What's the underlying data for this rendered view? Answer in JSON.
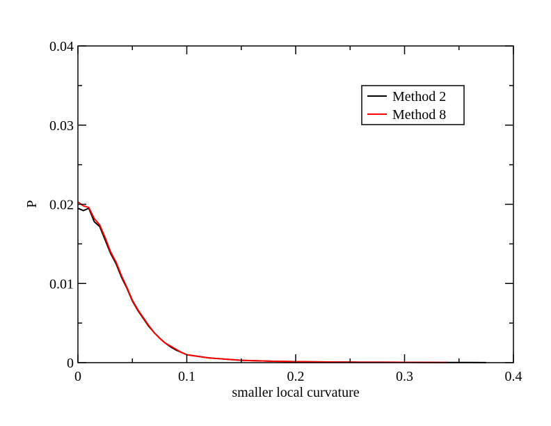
{
  "chart_data": {
    "type": "line",
    "title": "",
    "xlabel": "smaller local curvature",
    "ylabel": "P",
    "xlim": [
      0,
      0.4
    ],
    "ylim": [
      0,
      0.04
    ],
    "xticks": [
      0,
      0.1,
      0.2,
      0.3,
      0.4
    ],
    "xtick_labels": [
      "0",
      "0.1",
      "0.2",
      "0.3",
      "0.4"
    ],
    "yticks": [
      0,
      0.01,
      0.02,
      0.03,
      0.04
    ],
    "ytick_labels": [
      "0",
      "0.01",
      "0.02",
      "0.03",
      "0.04"
    ],
    "grid": false,
    "legend_position": "top-right",
    "series": [
      {
        "name": "Method 2",
        "color": "#000000",
        "x": [
          0,
          0.005,
          0.01,
          0.015,
          0.02,
          0.025,
          0.03,
          0.035,
          0.04,
          0.045,
          0.05,
          0.055,
          0.06,
          0.065,
          0.07,
          0.075,
          0.08,
          0.085,
          0.09,
          0.095,
          0.1,
          0.11,
          0.12,
          0.13,
          0.14,
          0.15,
          0.16,
          0.18,
          0.2,
          0.22,
          0.24,
          0.26,
          0.28,
          0.3,
          0.32,
          0.34,
          0.36,
          0.375
        ],
        "y": [
          0.0195,
          0.0192,
          0.0195,
          0.0178,
          0.0172,
          0.0155,
          0.0138,
          0.0125,
          0.0108,
          0.0094,
          0.0078,
          0.0066,
          0.0056,
          0.0046,
          0.0038,
          0.0031,
          0.0025,
          0.002,
          0.0016,
          0.0013,
          0.001,
          0.0008,
          0.0006,
          0.0005,
          0.0004,
          0.0003,
          0.00025,
          0.00018,
          0.00013,
          0.0001,
          8e-05,
          6e-05,
          5e-05,
          4e-05,
          3e-05,
          2e-05,
          2e-05,
          1e-05
        ]
      },
      {
        "name": "Method 8",
        "color": "#ff0000",
        "x": [
          0,
          0.005,
          0.01,
          0.015,
          0.02,
          0.025,
          0.03,
          0.035,
          0.04,
          0.045,
          0.05,
          0.055,
          0.06,
          0.065,
          0.07,
          0.075,
          0.08,
          0.085,
          0.09,
          0.095,
          0.1,
          0.11,
          0.12,
          0.13,
          0.14,
          0.15,
          0.16,
          0.18,
          0.2,
          0.22,
          0.24,
          0.26,
          0.28,
          0.3,
          0.32,
          0.34
        ],
        "y": [
          0.0203,
          0.0198,
          0.0196,
          0.0182,
          0.0174,
          0.0158,
          0.014,
          0.0127,
          0.011,
          0.0095,
          0.0079,
          0.0067,
          0.0057,
          0.0047,
          0.0038,
          0.0031,
          0.0025,
          0.0021,
          0.0017,
          0.0013,
          0.001,
          0.0008,
          0.0006,
          0.0005,
          0.0004,
          0.0003,
          0.00025,
          0.00018,
          0.00013,
          0.0001,
          8e-05,
          6e-05,
          5e-05,
          4e-05,
          3e-05,
          2e-05
        ]
      }
    ]
  }
}
